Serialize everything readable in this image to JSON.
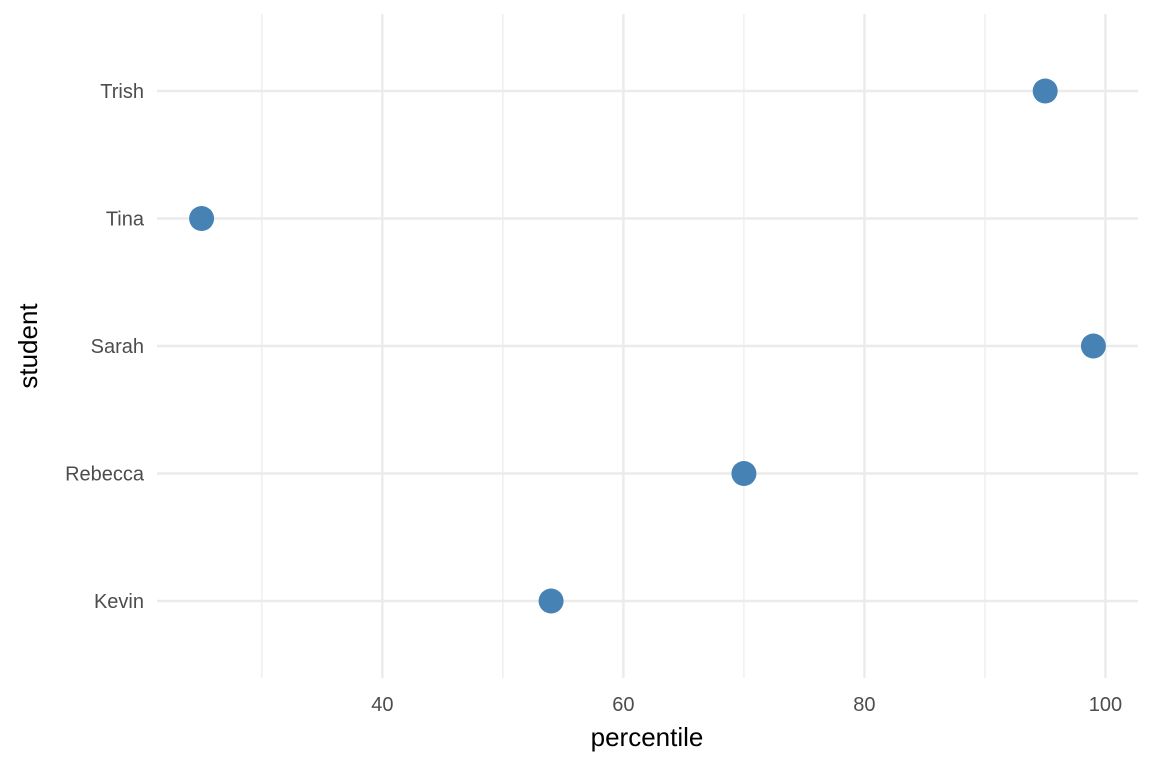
{
  "chart_data": {
    "type": "scatter",
    "title": "",
    "xlabel": "percentile",
    "ylabel": "student",
    "categories": [
      "Kevin",
      "Rebecca",
      "Sarah",
      "Tina",
      "Trish"
    ],
    "values": [
      54,
      70,
      99,
      25,
      95
    ],
    "xlim": [
      21.3,
      102.7
    ],
    "x_ticks": [
      40,
      60,
      80,
      100
    ],
    "x_minor_ticks": [
      30,
      50,
      70,
      90
    ],
    "point_color": "#4682b4",
    "grid": true,
    "legend": "none"
  }
}
